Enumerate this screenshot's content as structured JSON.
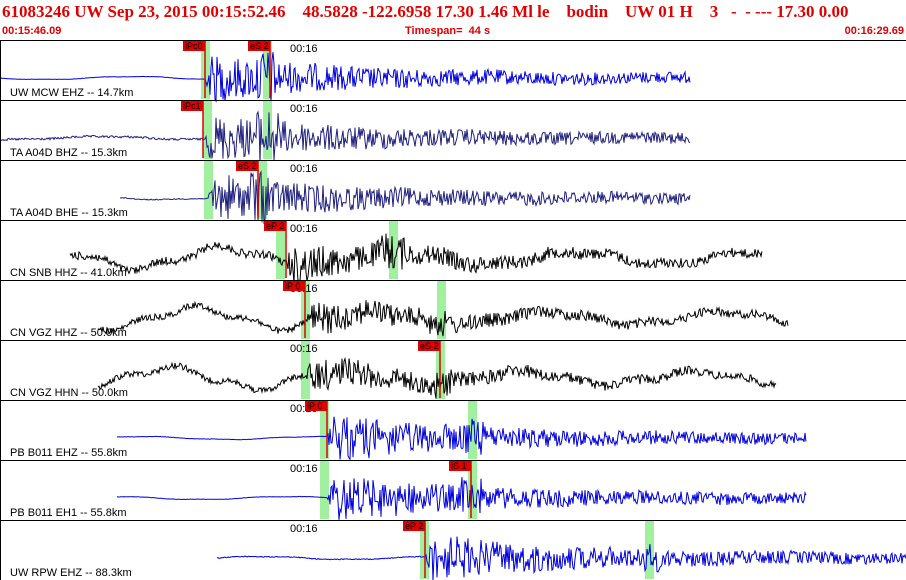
{
  "header": {
    "title": "61083246 UW Sep 23, 2015 00:15:52.46    48.5828 -122.6958 17.30 1.46 Ml le    bodin    UW 01 H    3   -  - --- 17.30 0.00",
    "start_time": "00:15:46.09",
    "timespan": "Timespan=  44 s",
    "end_time": "00:16:29.69"
  },
  "colors": {
    "header_text": "#e00000",
    "pick_flag": "#e00000",
    "pick_window": "#a0f0a0",
    "trace_blue": "#0000e0",
    "trace_navy": "#202080",
    "trace_black": "#000000"
  },
  "tick_label": "00:16",
  "traces": [
    {
      "label": "UW MCW EHZ -- 14.7km",
      "color": "blue",
      "start": 0,
      "end": 690,
      "onset": 205,
      "noise": 0.02,
      "amp": 1.0,
      "picks": [
        {
          "label": "iPc0",
          "x": 205,
          "flag": "top"
        },
        {
          "label": "eS 2",
          "x": 270,
          "flag": "top"
        }
      ],
      "windows": [
        205,
        267
      ]
    },
    {
      "label": "TA A04D BHZ -- 15.3km",
      "color": "navy",
      "start": 0,
      "end": 690,
      "onset": 205,
      "noise": 0.12,
      "amp": 1.0,
      "picks": [
        {
          "label": "iPc1",
          "x": 203,
          "flag": "top"
        }
      ],
      "windows": [
        207,
        267
      ]
    },
    {
      "label": "TA A04D BHE -- 15.3km",
      "color": "navy",
      "start": 120,
      "end": 690,
      "onset": 208,
      "noise": 0.06,
      "amp": 1.0,
      "picks": [
        {
          "label": "eS 2",
          "x": 258,
          "flag": "top"
        }
      ],
      "windows": [
        208,
        262
      ]
    },
    {
      "label": "CN SNB HHZ -- 41.0km",
      "color": "black",
      "start": 70,
      "end": 762,
      "onset": 285,
      "noise": 0.45,
      "amp": 0.8,
      "picks": [
        {
          "label": "eP 2",
          "x": 286,
          "flag": "top"
        }
      ],
      "windows": [
        280,
        393
      ]
    },
    {
      "label": "CN VGZ HHZ -- 50.0km",
      "color": "black",
      "start": 98,
      "end": 788,
      "onset": 305,
      "noise": 0.35,
      "amp": 0.7,
      "picks": [
        {
          "label": "iP 0",
          "x": 305,
          "flag": "top"
        }
      ],
      "windows": [
        305,
        441
      ]
    },
    {
      "label": "CN VGZ HHN -- 50.0km",
      "color": "black",
      "start": 98,
      "end": 776,
      "onset": 305,
      "noise": 0.35,
      "amp": 0.7,
      "picks": [
        {
          "label": "eS 2",
          "x": 440,
          "flag": "top"
        }
      ],
      "windows": [
        305,
        440
      ]
    },
    {
      "label": "PB B011 EHZ -- 55.8km",
      "color": "blue",
      "start": 117,
      "end": 806,
      "onset": 327,
      "noise": 0.02,
      "amp": 1.0,
      "picks": [
        {
          "label": "iP 0",
          "x": 327,
          "flag": "top"
        }
      ],
      "windows": [
        324,
        472
      ]
    },
    {
      "label": "PB B011 EH1 -- 55.8km",
      "color": "blue",
      "start": 117,
      "end": 806,
      "onset": 327,
      "noise": 0.02,
      "amp": 1.0,
      "picks": [
        {
          "label": "iS 1",
          "x": 471,
          "flag": "top"
        }
      ],
      "windows": [
        324,
        472
      ]
    },
    {
      "label": "UW RPW EHZ -- 88.3km",
      "color": "blue",
      "start": 217,
      "end": 906,
      "onset": 425,
      "noise": 0.05,
      "amp": 1.0,
      "picks": [
        {
          "label": "eP 2",
          "x": 425,
          "flag": "top"
        }
      ],
      "windows": [
        424,
        649
      ]
    }
  ]
}
